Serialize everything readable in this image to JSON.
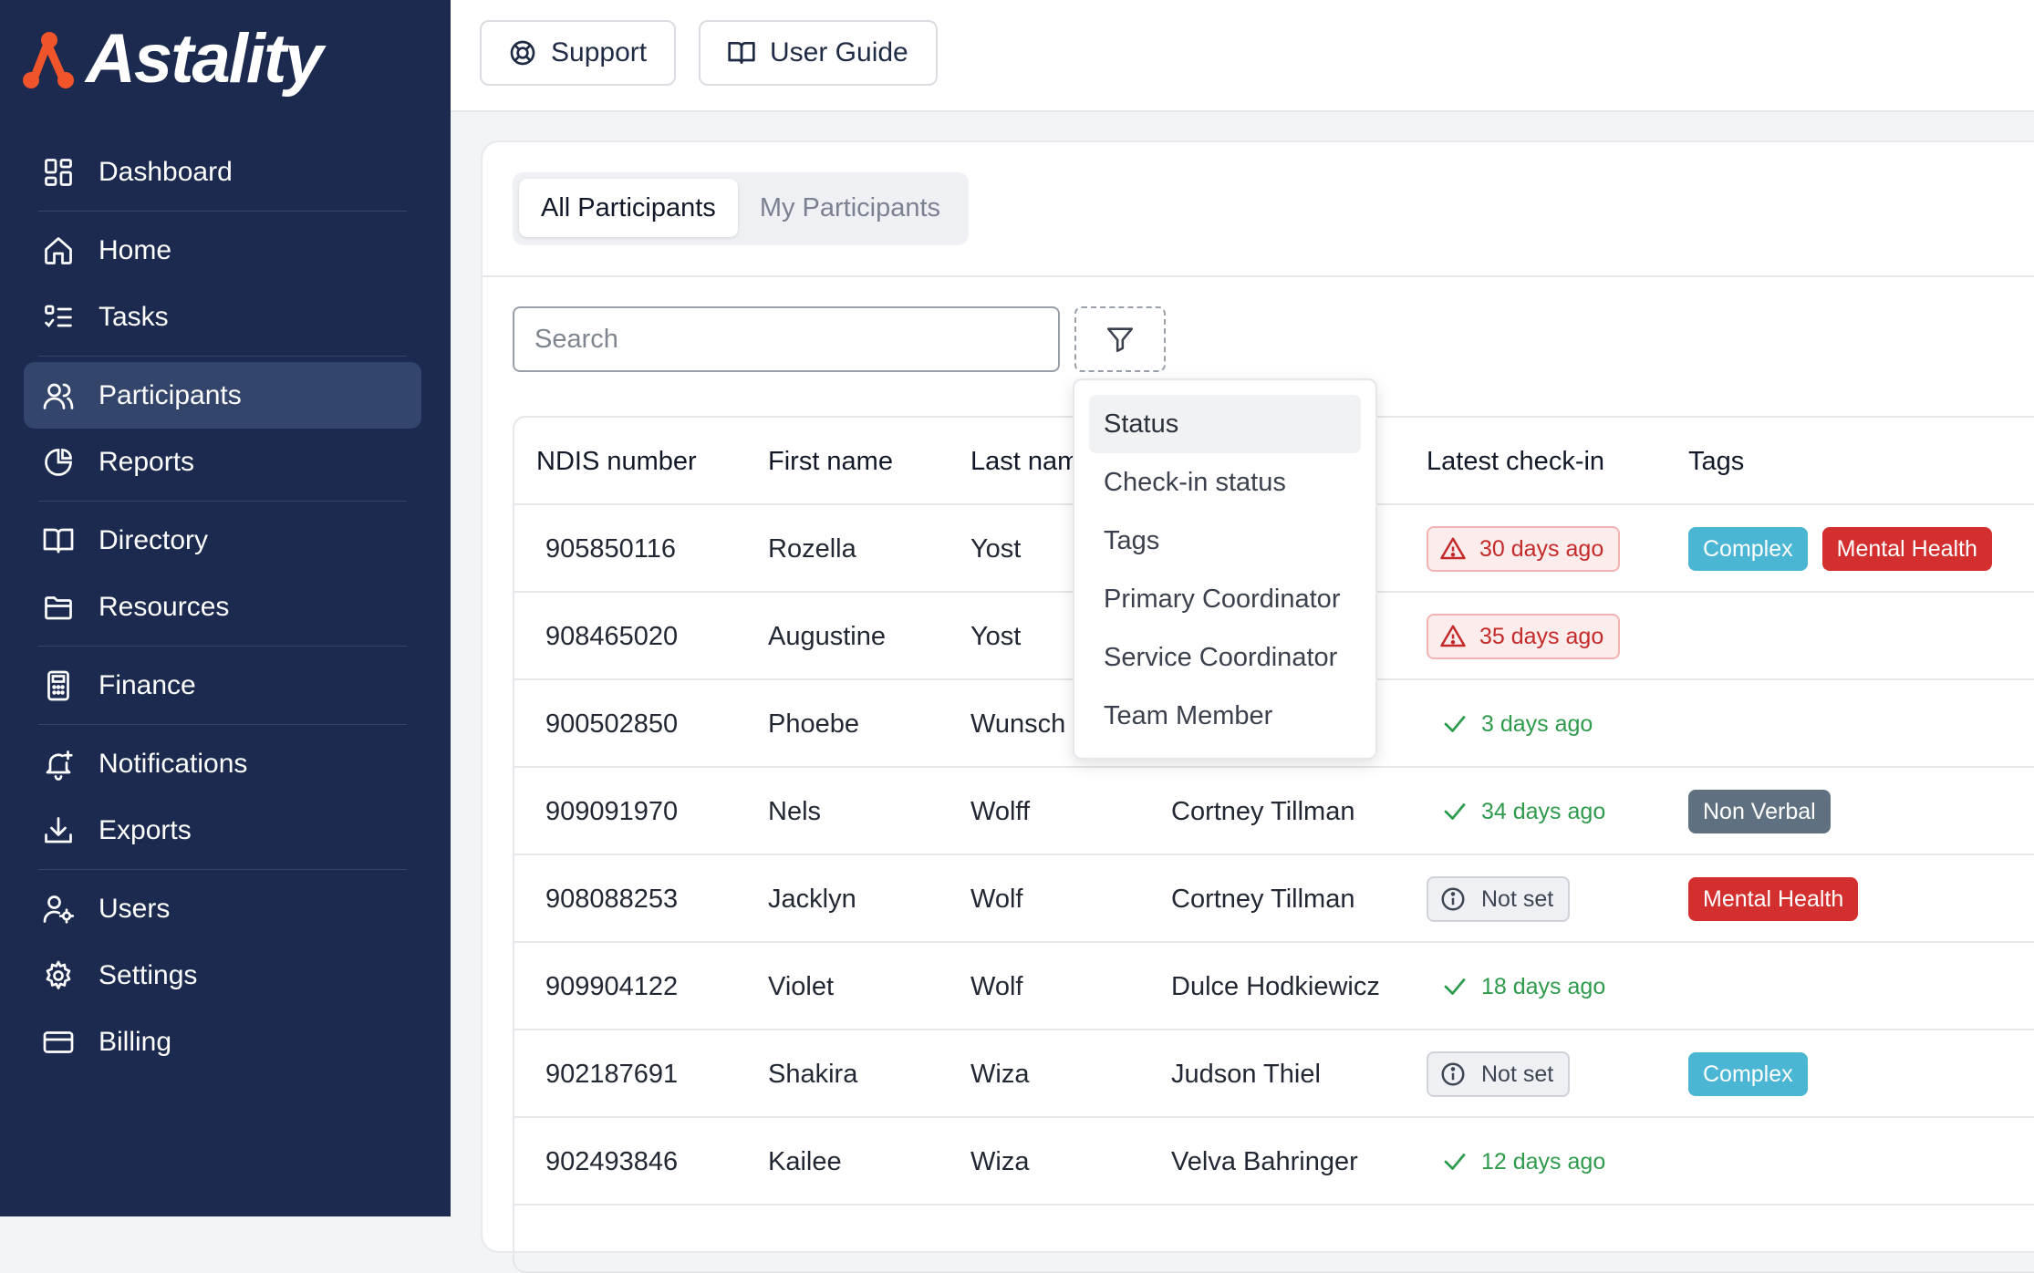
{
  "brand": {
    "name": "Astality"
  },
  "sidebar": {
    "items": [
      {
        "label": "Dashboard",
        "icon": "dashboard-icon"
      },
      {
        "label": "Home",
        "icon": "home-icon"
      },
      {
        "label": "Tasks",
        "icon": "tasks-icon"
      },
      {
        "label": "Participants",
        "icon": "users-icon",
        "active": true
      },
      {
        "label": "Reports",
        "icon": "pie-chart-icon"
      },
      {
        "label": "Directory",
        "icon": "book-icon"
      },
      {
        "label": "Resources",
        "icon": "folder-icon"
      },
      {
        "label": "Finance",
        "icon": "calculator-icon"
      },
      {
        "label": "Notifications",
        "icon": "bell-icon"
      },
      {
        "label": "Exports",
        "icon": "download-icon"
      },
      {
        "label": "Users",
        "icon": "user-gear-icon"
      },
      {
        "label": "Settings",
        "icon": "gear-icon"
      },
      {
        "label": "Billing",
        "icon": "credit-card-icon"
      }
    ]
  },
  "topbar": {
    "support_label": "Support",
    "guide_label": "User Guide"
  },
  "tabs": [
    {
      "label": "All Participants",
      "active": true
    },
    {
      "label": "My Participants",
      "active": false
    }
  ],
  "search": {
    "placeholder": "Search",
    "value": ""
  },
  "filter_menu": {
    "items": [
      "Status",
      "Check-in status",
      "Tags",
      "Primary Coordinator",
      "Service Coordinator",
      "Team Member"
    ],
    "highlighted": "Status"
  },
  "table": {
    "headers": {
      "ndis": "NDIS number",
      "first": "First name",
      "last": "Last nam",
      "coordinator": "",
      "checkin": "Latest check-in",
      "tags": "Tags"
    },
    "rows": [
      {
        "ndis": "905850116",
        "first": "Rozella",
        "last": "Yost",
        "coordinator": "",
        "checkin": {
          "type": "warn",
          "text": "30 days ago"
        },
        "tags": [
          "Complex",
          "Mental Health"
        ]
      },
      {
        "ndis": "908465020",
        "first": "Augustine",
        "last": "Yost",
        "coordinator": "",
        "checkin": {
          "type": "warn",
          "text": "35 days ago"
        },
        "tags": []
      },
      {
        "ndis": "900502850",
        "first": "Phoebe",
        "last": "Wunsch",
        "coordinator": "",
        "checkin": {
          "type": "ok",
          "text": "3 days ago"
        },
        "tags": []
      },
      {
        "ndis": "909091970",
        "first": "Nels",
        "last": "Wolff",
        "coordinator": "Cortney Tillman",
        "checkin": {
          "type": "ok",
          "text": "34 days ago"
        },
        "tags": [
          "Non Verbal"
        ]
      },
      {
        "ndis": "908088253",
        "first": "Jacklyn",
        "last": "Wolf",
        "coordinator": "Cortney Tillman",
        "checkin": {
          "type": "none",
          "text": "Not set"
        },
        "tags": [
          "Mental Health"
        ]
      },
      {
        "ndis": "909904122",
        "first": "Violet",
        "last": "Wolf",
        "coordinator": "Dulce Hodkiewicz",
        "checkin": {
          "type": "ok",
          "text": "18 days ago"
        },
        "tags": []
      },
      {
        "ndis": "902187691",
        "first": "Shakira",
        "last": "Wiza",
        "coordinator": "Judson Thiel",
        "checkin": {
          "type": "none",
          "text": "Not set"
        },
        "tags": [
          "Complex"
        ]
      },
      {
        "ndis": "902493846",
        "first": "Kailee",
        "last": "Wiza",
        "coordinator": "Velva Bahringer",
        "checkin": {
          "type": "ok",
          "text": "12 days ago"
        },
        "tags": []
      }
    ]
  },
  "tag_colors": {
    "Complex": "#4bb6d3",
    "Mental Health": "#d32f2f",
    "Non Verbal": "#5f7080"
  },
  "colors": {
    "sidebar_bg": "#1b2a4e",
    "brand_orange": "#f0542a",
    "warn_red": "#c52a2a",
    "ok_green": "#2e9b4c"
  }
}
